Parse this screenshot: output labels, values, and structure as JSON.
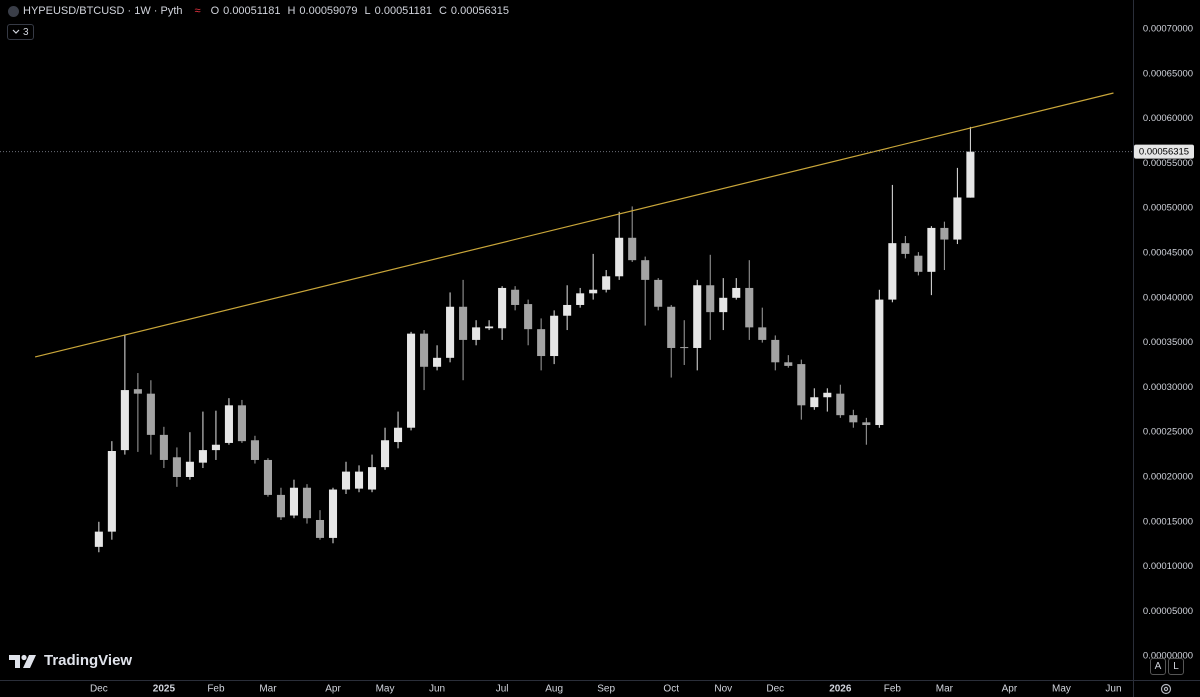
{
  "header": {
    "symbol": "HYPEUSD/BTCUSD · 1W · Pyth",
    "ohlc_labels": [
      "O",
      "H",
      "L",
      "C"
    ],
    "indicator_count": 3
  },
  "watermark": "TradingView",
  "buttons": [
    "A",
    "L"
  ],
  "chart_data": {
    "type": "candlestick",
    "up_color": "#e6e6e6",
    "down_color": "#a3a3a3",
    "grid": false,
    "open": [
      0.000122,
      0.000139,
      0.00023,
      0.000298,
      0.000293,
      0.000247,
      0.000222,
      0.0002,
      0.000216,
      0.00023,
      0.000238,
      0.00028,
      0.000241,
      0.000219,
      0.00018,
      0.000157,
      0.000188,
      0.000152,
      0.000132,
      0.000186,
      0.000187,
      0.000186,
      0.000211,
      0.000239,
      0.000255,
      0.00036,
      0.000323,
      0.000333,
      0.00039,
      0.000353,
      0.000366,
      0.000366,
      0.000409,
      0.000393,
      0.000365,
      0.000335,
      0.00038,
      0.000392,
      0.000405,
      0.000409,
      0.000424,
      0.000467,
      0.000442,
      0.00042,
      0.00039,
      0.000345,
      0.000344,
      0.000414,
      0.000384,
      0.0004,
      0.000411,
      0.000367,
      0.000353,
      0.000328,
      0.000326,
      0.000278,
      0.000289,
      0.000293,
      0.000269,
      0.000261,
      0.000258,
      0.000398,
      0.000461,
      0.000447,
      0.000429,
      0.000478,
      0.000465,
      0.00051181
    ],
    "high": [
      0.00015,
      0.00024,
      0.000358,
      0.000316,
      0.000308,
      0.000256,
      0.000233,
      0.00025,
      0.000273,
      0.000274,
      0.000288,
      0.000286,
      0.000246,
      0.000221,
      0.000188,
      0.000197,
      0.000192,
      0.000163,
      0.000188,
      0.000217,
      0.000213,
      0.000225,
      0.000255,
      0.000273,
      0.000362,
      0.000364,
      0.000347,
      0.000406,
      0.00042,
      0.000375,
      0.000375,
      0.000413,
      0.000413,
      0.000398,
      0.000377,
      0.000386,
      0.000414,
      0.000411,
      0.000449,
      0.000431,
      0.000496,
      0.000502,
      0.000446,
      0.000422,
      0.000392,
      0.000375,
      0.00042,
      0.000448,
      0.000422,
      0.000422,
      0.000442,
      0.000389,
      0.000358,
      0.000336,
      0.000331,
      0.000299,
      0.000299,
      0.000303,
      0.000275,
      0.000266,
      0.000409,
      0.000526,
      0.000469,
      0.000451,
      0.00048,
      0.000485,
      0.000545,
      0.00059079
    ],
    "low": [
      0.000116,
      0.00013,
      0.000225,
      0.000228,
      0.000225,
      0.00021,
      0.000189,
      0.000197,
      0.00021,
      0.000219,
      0.000236,
      0.000238,
      0.000215,
      0.000178,
      0.000152,
      0.000154,
      0.000148,
      0.00013,
      0.000126,
      0.000181,
      0.000183,
      0.000183,
      0.000208,
      0.000232,
      0.000252,
      0.000297,
      0.000319,
      0.000328,
      0.000308,
      0.000347,
      0.000364,
      0.000353,
      0.000386,
      0.000347,
      0.000319,
      0.000326,
      0.000364,
      0.000389,
      0.000398,
      0.000406,
      0.00042,
      0.00044,
      0.000369,
      0.000386,
      0.000311,
      0.000325,
      0.000319,
      0.000353,
      0.000364,
      0.000398,
      0.000353,
      0.00035,
      0.000319,
      0.000322,
      0.000264,
      0.000275,
      0.000273,
      0.000266,
      0.000255,
      0.000236,
      0.000255,
      0.000395,
      0.000444,
      0.000425,
      0.000403,
      0.000431,
      0.00046,
      0.00051181
    ],
    "close": [
      0.000139,
      0.000229,
      0.000297,
      0.000293,
      0.000247,
      0.000219,
      0.0002,
      0.000217,
      0.00023,
      0.000236,
      0.00028,
      0.00024,
      0.000219,
      0.00018,
      0.000155,
      0.000188,
      0.000154,
      0.000132,
      0.000186,
      0.000206,
      0.000206,
      0.000211,
      0.000241,
      0.000255,
      0.00036,
      0.000323,
      0.000333,
      0.00039,
      0.000353,
      0.000367,
      0.000368,
      0.000411,
      0.000392,
      0.000365,
      0.000335,
      0.00038,
      0.000392,
      0.000405,
      0.000409,
      0.000424,
      0.000467,
      0.000442,
      0.00042,
      0.00039,
      0.000344,
      0.000344,
      0.000414,
      0.000384,
      0.0004,
      0.000411,
      0.000367,
      0.000353,
      0.000328,
      0.000324,
      0.00028,
      0.000289,
      0.000294,
      0.000269,
      0.000261,
      0.000258,
      0.000398,
      0.000461,
      0.000449,
      0.000429,
      0.000478,
      0.000465,
      0.000512,
      0.00056315
    ],
    "trendline": {
      "x": [
        -4.9,
        78
      ],
      "y": [
        0.000334,
        0.0006286
      ],
      "color": "#c9a63a"
    },
    "xlim": [
      -7.6,
      79.5
    ],
    "xticks": [
      {
        "value": 0,
        "label": "Dec"
      },
      {
        "value": 5,
        "label": "2025"
      },
      {
        "value": 9,
        "label": "Feb"
      },
      {
        "value": 13,
        "label": "Mar"
      },
      {
        "value": 18,
        "label": "Apr"
      },
      {
        "value": 22,
        "label": "May"
      },
      {
        "value": 26,
        "label": "Jun"
      },
      {
        "value": 31,
        "label": "Jul"
      },
      {
        "value": 35,
        "label": "Aug"
      },
      {
        "value": 39,
        "label": "Sep"
      },
      {
        "value": 44,
        "label": "Oct"
      },
      {
        "value": 48,
        "label": "Nov"
      },
      {
        "value": 52,
        "label": "Dec"
      },
      {
        "value": 57,
        "label": "2026"
      },
      {
        "value": 61,
        "label": "Feb"
      },
      {
        "value": 65,
        "label": "Mar"
      },
      {
        "value": 70,
        "label": "Apr"
      },
      {
        "value": 74,
        "label": "May"
      },
      {
        "value": 78,
        "label": "Jun"
      }
    ],
    "ylim": [
      -2.66e-05,
      0.0007324
    ],
    "yticks": [
      {
        "value": 0.0007,
        "label": "0.00070000"
      },
      {
        "value": 0.00065,
        "label": "0.00065000"
      },
      {
        "value": 0.0006,
        "label": "0.00060000"
      },
      {
        "value": 0.00055,
        "label": "0.00055000"
      },
      {
        "value": 0.0005,
        "label": "0.00050000"
      },
      {
        "value": 0.00045,
        "label": "0.00045000"
      },
      {
        "value": 0.0004,
        "label": "0.00040000"
      },
      {
        "value": 0.00035,
        "label": "0.00035000"
      },
      {
        "value": 0.0003,
        "label": "0.00030000"
      },
      {
        "value": 0.00025,
        "label": "0.00025000"
      },
      {
        "value": 0.0002,
        "label": "0.00020000"
      },
      {
        "value": 0.00015,
        "label": "0.00015000"
      },
      {
        "value": 0.0001,
        "label": "0.00010000"
      },
      {
        "value": 5e-05,
        "label": "0.00005000"
      },
      {
        "value": 0,
        "label": "0.00000000"
      }
    ]
  }
}
